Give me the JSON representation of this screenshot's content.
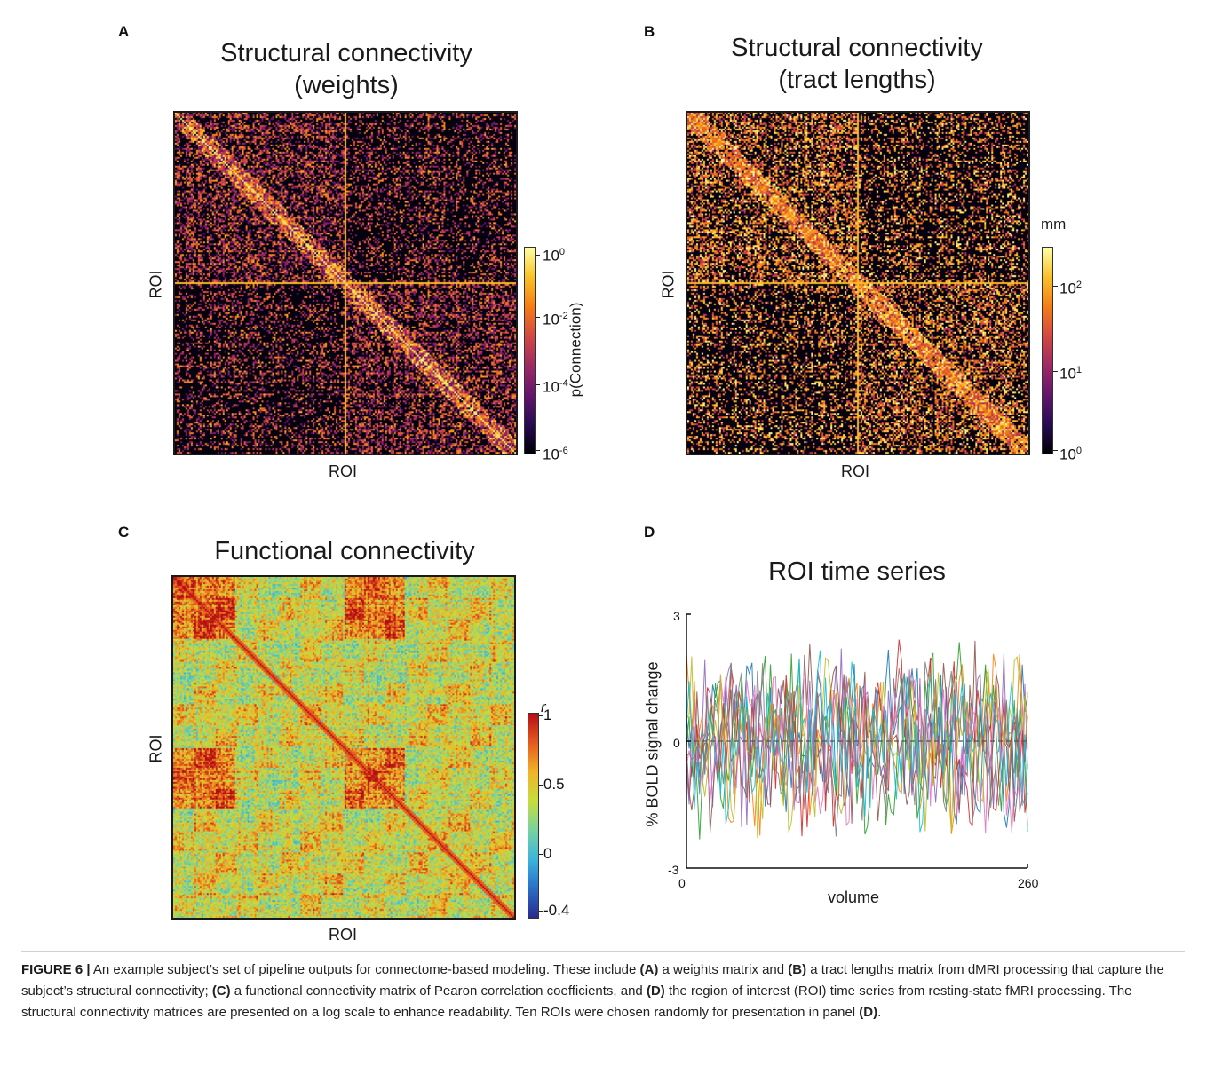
{
  "panels": {
    "a": {
      "letter": "A",
      "title_line1": "Structural connectivity",
      "title_line2": "(weights)",
      "xlabel": "ROI",
      "ylabel": "ROI",
      "colorbar_label": "p(Connection)",
      "colorbar_ticks": [
        {
          "base": "10",
          "exp": "0"
        },
        {
          "base": "10",
          "exp": "-2"
        },
        {
          "base": "10",
          "exp": "-4"
        },
        {
          "base": "10",
          "exp": "-6"
        }
      ]
    },
    "b": {
      "letter": "B",
      "title_line1": "Structural connectivity",
      "title_line2": "(tract lengths)",
      "xlabel": "ROI",
      "ylabel": "ROI",
      "colorbar_unit": "mm",
      "colorbar_ticks": [
        {
          "base": "10",
          "exp": "2"
        },
        {
          "base": "10",
          "exp": "1"
        },
        {
          "base": "10",
          "exp": "0"
        }
      ]
    },
    "c": {
      "letter": "C",
      "title": "Functional connectivity",
      "xlabel": "ROI",
      "ylabel": "ROI",
      "colorbar_unit": "r",
      "colorbar_ticks": [
        "1",
        "0.5",
        "0",
        "-0.4"
      ]
    },
    "d": {
      "letter": "D",
      "title": "ROI time series",
      "xlabel": "volume",
      "ylabel": "% BOLD signal change",
      "x_ticks": [
        "0",
        "260"
      ],
      "y_ticks": [
        "3",
        "0",
        "-3"
      ]
    }
  },
  "colors": {
    "inferno_low": "#000004",
    "inferno_high": "#fcffa4",
    "jet_low": "#2a2a8c",
    "jet_high": "#b40f14"
  },
  "chart_data": {
    "type": "line",
    "xlabel": "volume",
    "ylabel": "% BOLD signal change",
    "xlim": [
      0,
      260
    ],
    "ylim": [
      -3,
      3
    ],
    "n_series": 10,
    "note_series": "Ten ROI time series overlaid, each fluctuating roughly between -2.7 and 2.7 around a dashed zero line"
  },
  "caption": {
    "label": "FIGURE 6 |",
    "t1": " An example subject’s set of pipeline outputs for connectome-based modeling. These include ",
    "b1": "(A)",
    "t2": " a weights matrix and ",
    "b2": "(B)",
    "t3": " a tract lengths matrix from dMRI processing that capture the subject’s structural connectivity; ",
    "b3": "(C)",
    "t4": " a functional connectivity matrix of Pearon correlation coefficients, and ",
    "b4": "(D)",
    "t5": " the region of interest (ROI) time series from resting-state fMRI processing. The structural connectivity matrices are presented on a log scale to enhance readability. Ten ROIs were chosen randomly for presentation in panel ",
    "b5": "(D)",
    "t6": "."
  }
}
